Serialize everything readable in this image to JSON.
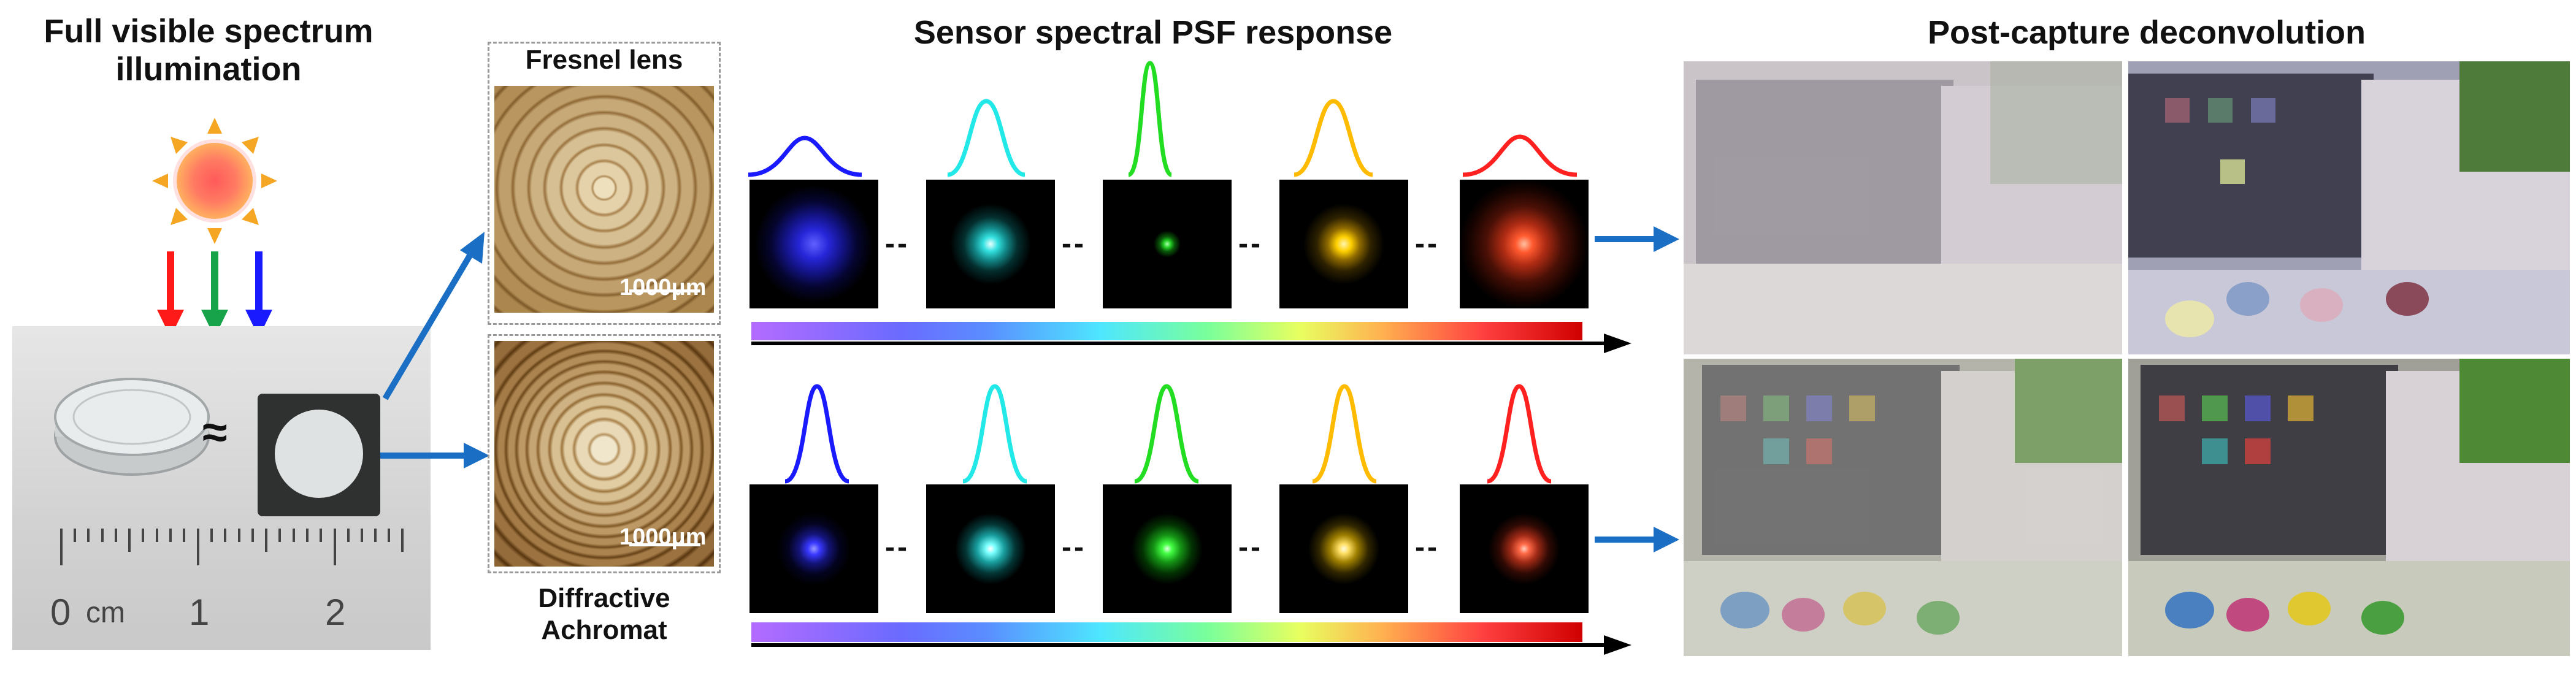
{
  "illumination": {
    "title_line1": "Full visible spectrum",
    "title_line2": "illumination",
    "approx_symbol": "≈",
    "ruler": {
      "zero": "0",
      "unit": "cm",
      "one": "1",
      "two": "2"
    }
  },
  "lenses": {
    "fresnel_label": "Fresnel lens",
    "achromat_label_line1": "Diffractive",
    "achromat_label_line2": "Achromat",
    "scale_fresnel": "1000μm",
    "scale_achromat": "1000μm"
  },
  "psf": {
    "title": "Sensor spectral PSF response",
    "separator": "--",
    "top_colors": [
      "#1a1aff",
      "#22e8e8",
      "#22dd22",
      "#ffbb00",
      "#ff2020"
    ],
    "bottom_colors": [
      "#1a1aff",
      "#22e8e8",
      "#22dd22",
      "#ffbb00",
      "#ff2020"
    ]
  },
  "deconvolution": {
    "title": "Post-capture deconvolution"
  }
}
